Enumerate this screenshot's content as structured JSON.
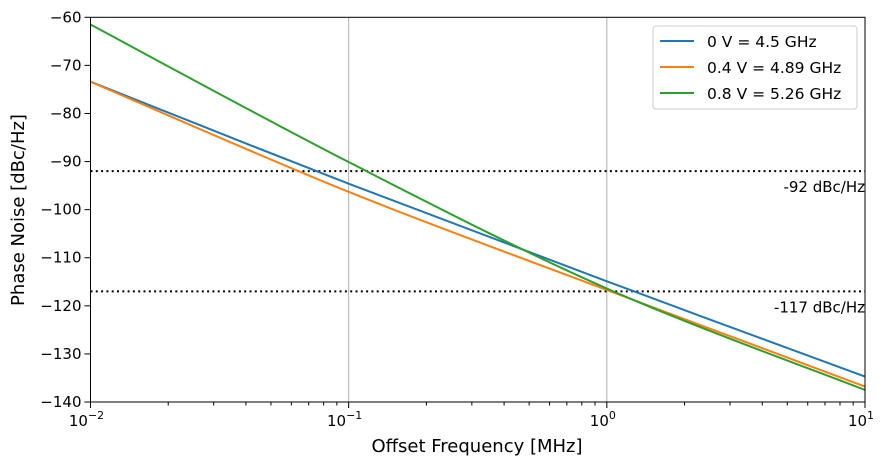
{
  "chart_data": {
    "type": "line",
    "xlabel": "Offset Frequency [MHz]",
    "ylabel": "Phase Noise [dBc/Hz]",
    "x_scale": "log",
    "xlim": [
      0.01,
      10
    ],
    "ylim": [
      -140,
      -60
    ],
    "x_ticks": [
      {
        "base": "10",
        "exp": "−2",
        "value": 0.01
      },
      {
        "base": "10",
        "exp": "−1",
        "value": 0.1
      },
      {
        "base": "10",
        "exp": "0",
        "value": 1
      },
      {
        "base": "10",
        "exp": "1",
        "value": 10
      }
    ],
    "y_ticks": [
      "−60",
      "−70",
      "−80",
      "−90",
      "−100",
      "−110",
      "−120",
      "−130",
      "−140"
    ],
    "y_tick_values": [
      -60,
      -70,
      -80,
      -90,
      -100,
      -110,
      -120,
      -130,
      -140
    ],
    "grid": "vertical major gridlines",
    "legend_position": "top-right",
    "series": [
      {
        "name": "0 V = 4.5 GHz",
        "color": "#1f77b4",
        "x": [
          0.01,
          0.1,
          1,
          10
        ],
        "y": [
          -73.4,
          -94.6,
          -114.9,
          -134.7
        ]
      },
      {
        "name": "0.4 V = 4.89 GHz",
        "color": "#ff7f0e",
        "x": [
          0.01,
          0.1,
          1,
          10
        ],
        "y": [
          -73.4,
          -96.3,
          -116.7,
          -136.8
        ]
      },
      {
        "name": "0.8 V = 5.26 GHz",
        "color": "#2ca02c",
        "x": [
          0.01,
          0.1,
          1,
          10
        ],
        "y": [
          -61.5,
          -90.1,
          -116.4,
          -137.5
        ]
      }
    ],
    "reference_lines": [
      {
        "y": -92,
        "label": "-92 dBc/Hz",
        "style": "dotted",
        "color": "#000000"
      },
      {
        "y": -117,
        "label": "-117 dBc/Hz",
        "style": "dotted",
        "color": "#000000"
      }
    ]
  }
}
